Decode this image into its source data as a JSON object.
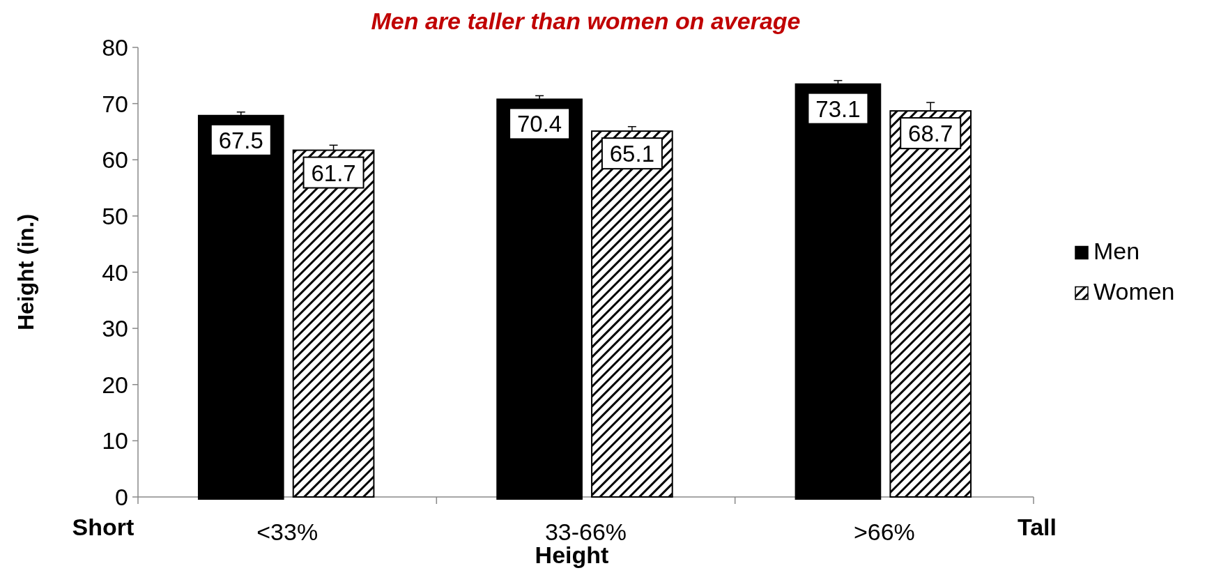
{
  "chart_data": {
    "type": "bar",
    "title": "Men are taller than women on average",
    "xlabel": "Height",
    "ylabel": "Height (in.)",
    "categories": [
      "<33%",
      "33-66%",
      ">66%"
    ],
    "series": [
      {
        "name": "Men",
        "color": "#000000",
        "values": [
          67.5,
          70.4,
          73.1
        ],
        "errors": [
          [
            67.5,
            68.5
          ],
          [
            70.4,
            71.4
          ],
          [
            73.1,
            74.1
          ]
        ]
      },
      {
        "name": "Women",
        "color": "#000000",
        "values": [
          61.7,
          65.1,
          68.7
        ],
        "errors": [
          [
            61.7,
            62.6
          ],
          [
            65.1,
            65.9
          ],
          [
            68.7,
            70.2
          ]
        ]
      }
    ],
    "ylim": [
      0,
      80
    ],
    "yticks": [
      0,
      10,
      20,
      30,
      40,
      50,
      60,
      70,
      80
    ],
    "data_labels": true,
    "legend": "right",
    "grid": false,
    "annotations": [
      "Short",
      "Tall"
    ]
  }
}
